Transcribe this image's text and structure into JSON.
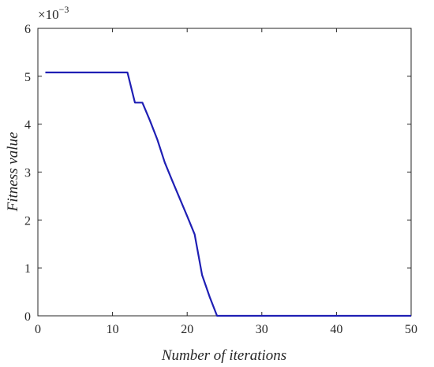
{
  "chart_data": {
    "type": "line",
    "title": "",
    "xlabel": "Number of iterations",
    "ylabel": "Fitness value",
    "xlim": [
      0,
      50
    ],
    "ylim": [
      0,
      6
    ],
    "x_ticks": [
      "0",
      "10",
      "20",
      "30",
      "40",
      "50"
    ],
    "y_ticks": [
      "0",
      "1",
      "2",
      "3",
      "4",
      "5",
      "6"
    ],
    "y_multiplier": {
      "base": "×10",
      "exponent": "−3"
    },
    "grid": false,
    "line_color": "#1f1fb4",
    "series": [
      {
        "x": [
          1,
          12,
          13,
          14,
          15,
          16,
          17,
          18,
          19,
          20,
          21,
          22,
          23,
          24,
          25,
          30,
          35,
          40,
          45,
          50
        ],
        "y": [
          5.08,
          5.08,
          4.45,
          4.45,
          4.08,
          3.68,
          3.2,
          2.82,
          2.45,
          2.08,
          1.7,
          0.85,
          0.4,
          0.0,
          0.0,
          0.0,
          0.0,
          0.0,
          0.0,
          0.0
        ]
      }
    ]
  }
}
